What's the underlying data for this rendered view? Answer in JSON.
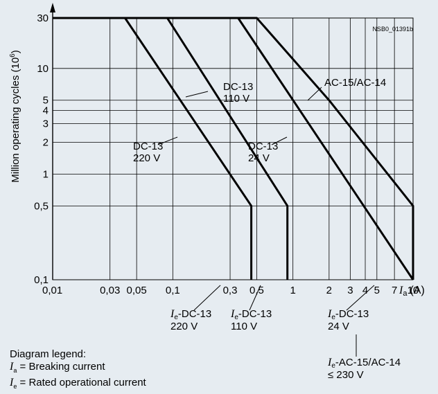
{
  "chart_data": {
    "type": "line",
    "x_scale": "log",
    "y_scale": "log",
    "xlim": [
      0.01,
      10
    ],
    "ylim": [
      0.1,
      30
    ],
    "x_ticks": [
      "0,01",
      "0,03",
      "0,05",
      "0,1",
      "0,3",
      "0,5",
      "1",
      "2",
      "3",
      "4",
      "5",
      "7",
      "10"
    ],
    "x_tick_values": [
      0.01,
      0.03,
      0.05,
      0.1,
      0.3,
      0.5,
      1,
      2,
      3,
      4,
      5,
      7,
      10
    ],
    "y_ticks": [
      "0,1",
      "0,5",
      "1",
      "2",
      "3",
      "4",
      "5",
      "10",
      "30"
    ],
    "y_tick_values": [
      0.1,
      0.5,
      1,
      2,
      3,
      4,
      5,
      10,
      30
    ],
    "ylabel": "Million operating cycles (10",
    "ylabel_sup": "6",
    "ylabel_end": ")",
    "xlabel_sym": "I",
    "xlabel_sub": "a",
    "xlabel_unit": "(A)",
    "doc_id": "NSB0_01391b",
    "grid": true,
    "series": [
      {
        "name": "DC-13 220 V",
        "line1": "DC-13",
        "line2": "220 V",
        "x": [
          0.01,
          0.04,
          0.45,
          0.45
        ],
        "y": [
          30,
          30,
          0.5,
          0.1
        ]
      },
      {
        "name": "DC-13 110 V",
        "line1": "DC-13",
        "line2": "110 V",
        "x": [
          0.01,
          0.09,
          0.9,
          0.9
        ],
        "y": [
          30,
          30,
          0.5,
          0.1
        ]
      },
      {
        "name": "DC-13 24 V",
        "line1": "DC-13",
        "line2": "24 V",
        "x": [
          0.01,
          0.35,
          10
        ],
        "y": [
          30,
          30,
          0.1
        ]
      },
      {
        "name": "AC-15/AC-14",
        "line1": "AC-15/AC-14",
        "line2": "",
        "x": [
          0.01,
          0.5,
          2,
          10,
          10
        ],
        "y": [
          30,
          30,
          5,
          0.5,
          0.1
        ]
      }
    ],
    "bottom_annotations": [
      {
        "sym": "I",
        "sub": "e",
        "text": "-DC-13",
        "line2": "220 V"
      },
      {
        "sym": "I",
        "sub": "e",
        "text": "-DC-13",
        "line2": "110 V"
      },
      {
        "sym": "I",
        "sub": "e",
        "text": "-DC-13",
        "line2": "24 V"
      },
      {
        "sym": "I",
        "sub": "e",
        "text": "-AC-15/AC-14",
        "line2": "≤ 230 V"
      }
    ]
  },
  "legend": {
    "title": "Diagram legend:",
    "items": [
      {
        "sym": "I",
        "sub": "a",
        "text": " = Breaking current"
      },
      {
        "sym": "I",
        "sub": "e",
        "text": " = Rated operational current"
      }
    ]
  }
}
